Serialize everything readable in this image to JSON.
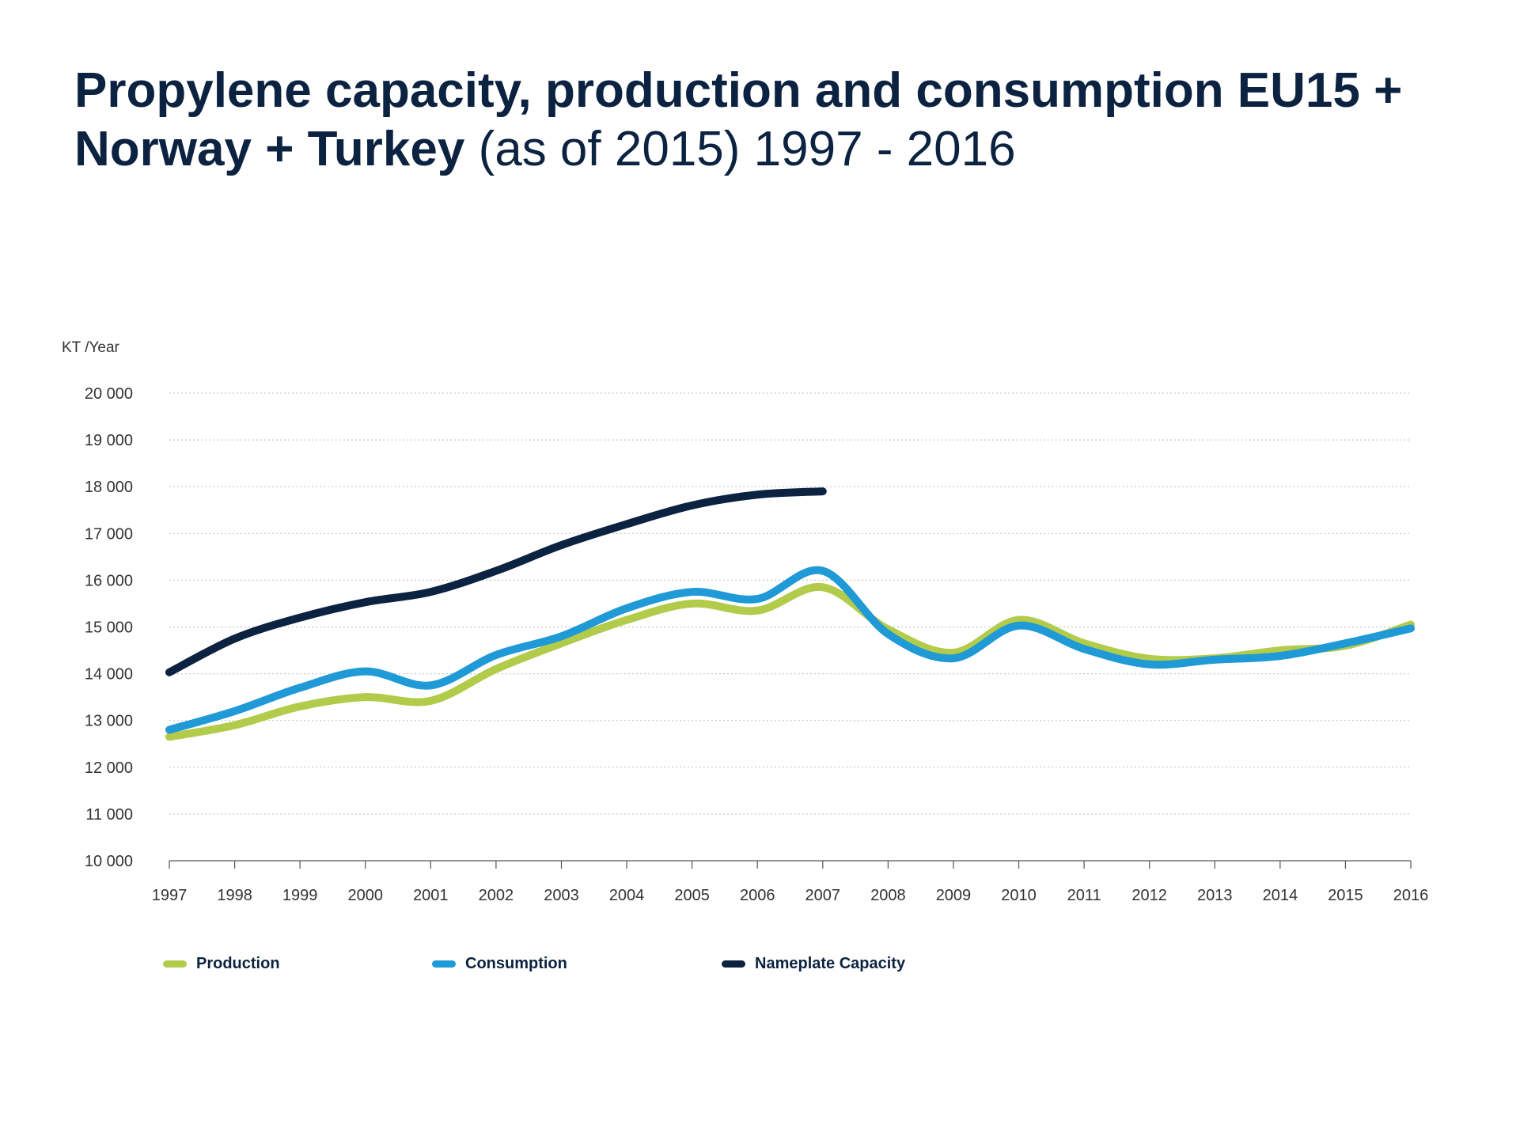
{
  "title": {
    "bold": "Propylene capacity, production and consumption EU15 + Norway + Turkey",
    "light": "(as of 2015) 1997 - 2016"
  },
  "colors": {
    "production": "#b3cb4a",
    "consumption": "#1f9ad6",
    "capacity": "#0b2240",
    "grid": "#c8c8c8",
    "axis": "#555555"
  },
  "chart_data": {
    "type": "line",
    "ylabel": "KT /Year",
    "xlabel": "",
    "ylim": [
      10000,
      20000
    ],
    "yticks": [
      10000,
      11000,
      12000,
      13000,
      14000,
      15000,
      16000,
      17000,
      18000,
      19000,
      20000
    ],
    "ytick_labels": [
      "10 000",
      "11 000",
      "12 000",
      "13 000",
      "14 000",
      "15 000",
      "16 000",
      "17 000",
      "18 000",
      "19 000",
      "20 000"
    ],
    "categories": [
      "1997",
      "1998",
      "1999",
      "2000",
      "2001",
      "2002",
      "2003",
      "2004",
      "2005",
      "2006",
      "2007",
      "2008",
      "2009",
      "2010",
      "2011",
      "2012",
      "2013",
      "2014",
      "2015",
      "2016"
    ],
    "grid": "horizontal dotted",
    "legend_position": "bottom-left",
    "series": [
      {
        "name": "Production",
        "color_key": "production",
        "values": [
          12650,
          12900,
          13300,
          13500,
          13420,
          14100,
          14650,
          15150,
          15500,
          15350,
          15850,
          14950,
          14450,
          15150,
          14650,
          14320,
          14330,
          14500,
          14600,
          15050
        ]
      },
      {
        "name": "Consumption",
        "color_key": "consumption",
        "values": [
          12800,
          13200,
          13700,
          14050,
          13750,
          14400,
          14800,
          15400,
          15750,
          15600,
          16200,
          14850,
          14330,
          15030,
          14530,
          14200,
          14300,
          14380,
          14650,
          14970
        ]
      },
      {
        "name": "Nameplate Capacity",
        "color_key": "capacity",
        "values": [
          14030,
          14750,
          15200,
          15530,
          15750,
          16200,
          16750,
          17200,
          17600,
          17830,
          17900,
          null,
          null,
          null,
          null,
          null,
          null,
          null,
          null,
          null
        ]
      }
    ]
  }
}
